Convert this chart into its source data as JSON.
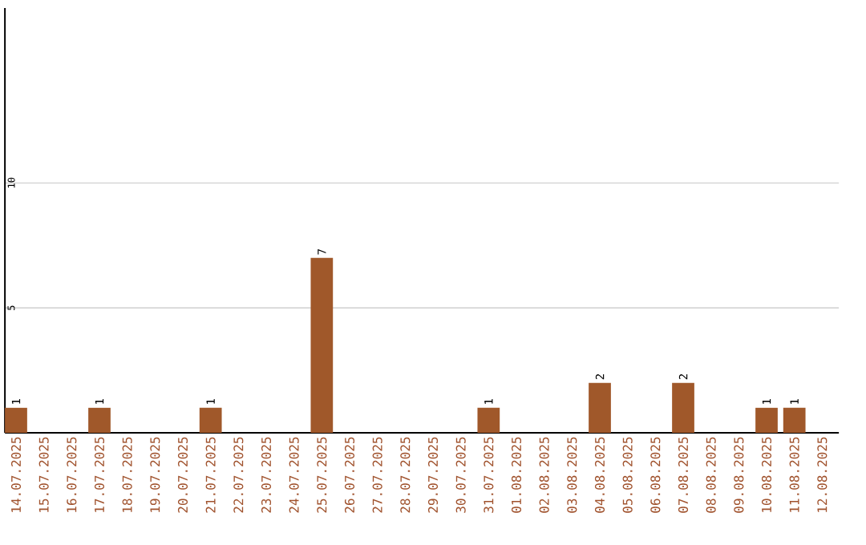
{
  "chart_data": {
    "type": "bar",
    "categories": [
      "14.07.2025",
      "15.07.2025",
      "16.07.2025",
      "17.07.2025",
      "18.07.2025",
      "19.07.2025",
      "20.07.2025",
      "21.07.2025",
      "22.07.2025",
      "23.07.2025",
      "24.07.2025",
      "25.07.2025",
      "26.07.2025",
      "27.07.2025",
      "28.07.2025",
      "29.07.2025",
      "30.07.2025",
      "31.07.2025",
      "01.08.2025",
      "02.08.2025",
      "03.08.2025",
      "04.08.2025",
      "05.08.2025",
      "06.08.2025",
      "07.08.2025",
      "08.08.2025",
      "09.08.2025",
      "10.08.2025",
      "11.08.2025",
      "12.08.2025"
    ],
    "values": [
      1,
      0,
      0,
      1,
      0,
      0,
      0,
      1,
      0,
      0,
      0,
      7,
      0,
      0,
      0,
      0,
      0,
      1,
      0,
      0,
      0,
      2,
      0,
      0,
      2,
      0,
      0,
      1,
      1,
      0
    ],
    "value_labels": [
      "1",
      null,
      null,
      "1",
      null,
      null,
      null,
      "1",
      null,
      null,
      null,
      "7",
      null,
      null,
      null,
      null,
      null,
      "1",
      null,
      null,
      null,
      "2",
      null,
      null,
      "2",
      null,
      null,
      "1",
      "1",
      null
    ],
    "color": "#a0582a",
    "ylim": [
      0,
      17
    ],
    "yticks": [
      5,
      10
    ],
    "grid": "y"
  }
}
